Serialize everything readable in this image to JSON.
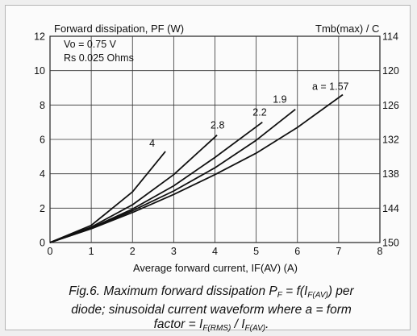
{
  "chart_data": {
    "type": "line",
    "title": "Forward dissipation, PF (W)",
    "right_axis_title": "Tmb(max) / C",
    "xlabel": "Average forward current, IF(AV) (A)",
    "xlim": [
      0,
      8
    ],
    "ylim": [
      0,
      12
    ],
    "x_ticks": [
      "0",
      "1",
      "2",
      "3",
      "4",
      "5",
      "6",
      "7",
      "8"
    ],
    "y_ticks": [
      "0",
      "2",
      "4",
      "6",
      "8",
      "10",
      "12"
    ],
    "right_ticks": [
      "150",
      "144",
      "138",
      "132",
      "126",
      "120",
      "114"
    ],
    "grid": true,
    "params": [
      "Vo = 0.75 V",
      "Rs 0.025 Ohms"
    ],
    "series": [
      {
        "name": "4",
        "x": [
          0,
          1,
          2,
          2.8
        ],
        "y": [
          0,
          1.0,
          2.95,
          5.3
        ]
      },
      {
        "name": "2.8",
        "x": [
          0,
          1,
          2,
          3,
          4.05
        ],
        "y": [
          0,
          0.9,
          2.2,
          3.95,
          6.25
        ]
      },
      {
        "name": "2.2",
        "x": [
          0,
          1,
          2,
          3,
          4,
          5.15
        ],
        "y": [
          0,
          0.85,
          1.95,
          3.3,
          4.95,
          7.0
        ]
      },
      {
        "name": "1.9",
        "x": [
          0,
          1,
          2,
          3,
          4,
          5,
          5.95
        ],
        "y": [
          0,
          0.82,
          1.85,
          3.0,
          4.35,
          5.95,
          7.75
        ]
      },
      {
        "name": "a = 1.57",
        "x": [
          0,
          1,
          2,
          3,
          4,
          5,
          6,
          7.1
        ],
        "y": [
          0,
          0.8,
          1.75,
          2.8,
          3.95,
          5.2,
          6.7,
          8.6
        ]
      }
    ]
  },
  "caption": {
    "line1": "Fig.6.  Maximum forward dissipation P",
    "line1_sub": "F",
    "line1_mid": " = f(I",
    "line1_sub2": "F(AV)",
    "line1_end": ") per",
    "line2": "diode; sinusoidal current waveform where a = form",
    "line3_pre": "factor = I",
    "line3_sub": "F(RMS)",
    "line3_mid": " / I",
    "line3_sub2": "F(AV)",
    "line3_end": "."
  }
}
